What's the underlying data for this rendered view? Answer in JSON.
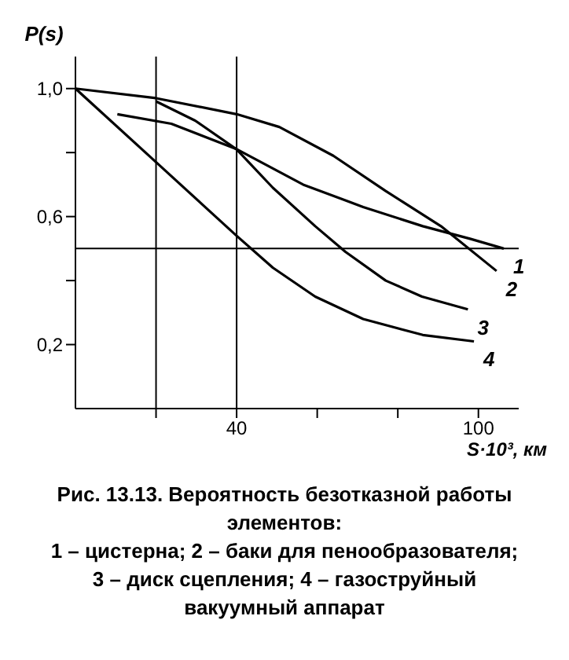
{
  "chart_data": {
    "type": "line",
    "xlabel": "S·10³, км",
    "ylabel": "P(s)",
    "xlim": [
      0,
      110
    ],
    "ylim": [
      0,
      1.1
    ],
    "xticks": [
      {
        "value": 20,
        "label": null
      },
      40,
      {
        "value": 60,
        "label": null
      },
      {
        "value": 80,
        "label": null
      },
      100
    ],
    "yticks": [
      {
        "value": 0.2,
        "label": "0,2"
      },
      {
        "value": 0.4,
        "label": null
      },
      {
        "value": 0.6,
        "label": "0,6"
      },
      {
        "value": 0.8,
        "label": null
      },
      {
        "value": 1,
        "label": "1,0"
      }
    ],
    "series": [
      {
        "name": "1",
        "color": "#000000",
        "x": [
          10.4,
          23.8,
          40.1,
          56.5,
          71.4,
          86.2,
          98.1,
          106.3
        ],
        "values": [
          0.92,
          0.89,
          0.81,
          0.7,
          0.63,
          0.57,
          0.53,
          0.5
        ]
      },
      {
        "name": "2",
        "color": "#000000",
        "x": [
          0,
          20,
          40,
          50.6,
          64,
          77,
          90.7,
          104.5
        ],
        "values": [
          1.0,
          0.97,
          0.92,
          0.88,
          0.79,
          0.68,
          0.57,
          0.43
        ]
      },
      {
        "name": "3",
        "color": "#000000",
        "x": [
          20,
          29.7,
          40,
          49,
          59.5,
          67,
          77,
          86,
          97.4
        ],
        "values": [
          0.96,
          0.9,
          0.81,
          0.69,
          0.57,
          0.49,
          0.4,
          0.35,
          0.31
        ]
      },
      {
        "name": "4",
        "color": "#000000",
        "x": [
          0,
          20,
          40,
          49,
          59.5,
          71.4,
          86.2,
          98.9
        ],
        "values": [
          1.0,
          0.77,
          0.54,
          0.44,
          0.35,
          0.28,
          0.23,
          0.21
        ]
      }
    ],
    "ref_lines": [
      {
        "axis": "y",
        "value": 0.5,
        "color": "#000000"
      },
      {
        "axis": "x",
        "value": 20,
        "color": "#000000"
      },
      {
        "axis": "x",
        "value": 40,
        "color": "#000000"
      }
    ],
    "grid": false,
    "legend": false,
    "marker": "none",
    "line_style": "solid",
    "annotations": [
      "Рис. 13.13. Вероятность безотказной работы элементов:",
      "1 – цистерна; 2 – баки для пенообразователя;",
      "3 – диск сцепления; 4 – газоструйный",
      "вакуумный аппарат"
    ]
  }
}
